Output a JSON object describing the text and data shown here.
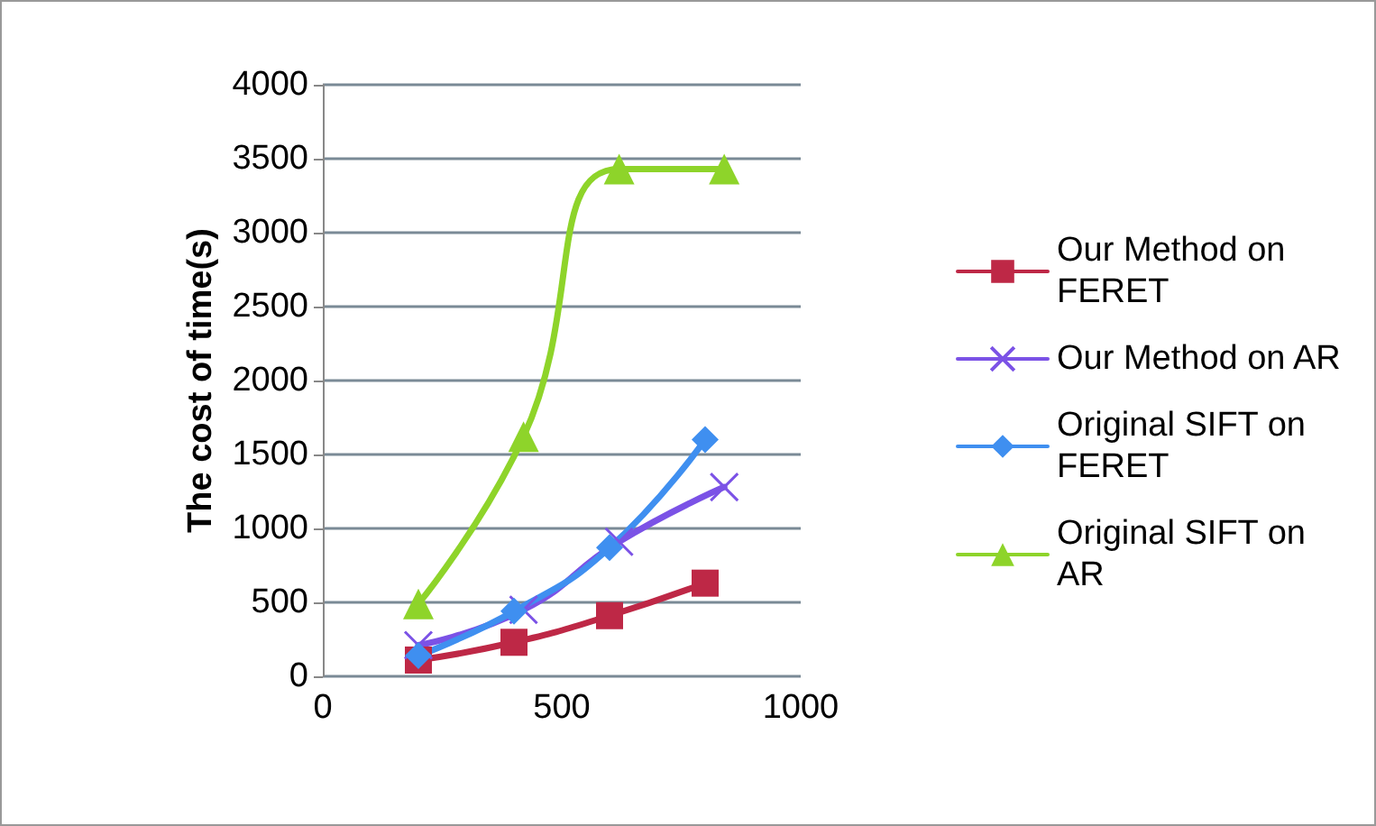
{
  "chart_data": {
    "type": "line",
    "ylabel": "The cost of time(s)",
    "xlim": [
      0,
      1000
    ],
    "xticks": [
      0,
      500,
      1000
    ],
    "ylim": [
      0,
      4000
    ],
    "yticks": [
      0,
      500,
      1000,
      1500,
      2000,
      2500,
      3000,
      3500,
      4000
    ],
    "grid": "y",
    "legend": "right",
    "series": [
      {
        "name": "Our Method on FERET",
        "color": "#be2846",
        "marker": "square",
        "x": [
          200,
          400,
          600,
          800
        ],
        "values": [
          110,
          230,
          410,
          630
        ]
      },
      {
        "name": "Our Method on AR",
        "color": "#7b52e6",
        "marker": "cross",
        "x": [
          200,
          420,
          620,
          840
        ],
        "values": [
          210,
          450,
          910,
          1280
        ]
      },
      {
        "name": "Original SIFT on FERET",
        "color": "#3f8ff0",
        "marker": "diamond",
        "x": [
          200,
          400,
          600,
          800
        ],
        "values": [
          140,
          440,
          870,
          1600
        ]
      },
      {
        "name": "Original SIFT on AR",
        "color": "#8ed42a",
        "marker": "triangle",
        "x": [
          200,
          420,
          620,
          840
        ],
        "values": [
          490,
          1620,
          3430,
          3430
        ]
      }
    ]
  }
}
